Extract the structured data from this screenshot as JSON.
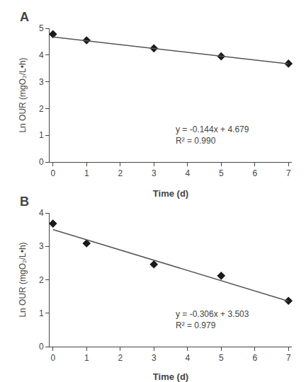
{
  "chart_data": [
    {
      "type": "scatter",
      "title": "A",
      "x_label": "Time (d)",
      "y_label": "Ln OUR (mgO₂/L•h)",
      "series": [
        {
          "type": "scatter",
          "marker": "diamond",
          "color": "#1a1a1a",
          "x": [
            0,
            1,
            3,
            5,
            7
          ],
          "values": [
            4.78,
            4.55,
            4.25,
            3.95,
            3.68
          ]
        },
        {
          "type": "line",
          "line_style": "solid",
          "color": "#555555",
          "x": [
            0,
            7
          ],
          "values": [
            4.679,
            3.671
          ]
        }
      ],
      "annotations": [
        {
          "text": "y = -0.144x + 4.679\nR² = 0.990",
          "x": 3.6,
          "y": 0.55
        }
      ],
      "xlim": [
        -0.1,
        7.1
      ],
      "xticks": [
        0,
        1,
        2,
        3,
        4,
        5,
        6,
        7
      ],
      "ylim": [
        0,
        5
      ],
      "yticks": [
        0,
        1,
        2,
        3,
        4,
        5
      ],
      "grid": false
    },
    {
      "type": "scatter",
      "title": "B",
      "x_label": "Time (d)",
      "y_label": "Ln OUR (mgO₂/L•h)",
      "series": [
        {
          "type": "scatter",
          "marker": "diamond",
          "color": "#1a1a1a",
          "x": [
            0,
            1,
            3,
            5,
            7
          ],
          "values": [
            3.68,
            3.09,
            2.46,
            2.12,
            1.37
          ]
        },
        {
          "type": "line",
          "line_style": "solid",
          "color": "#555555",
          "x": [
            0,
            7
          ],
          "values": [
            3.503,
            1.361
          ]
        }
      ],
      "annotations": [
        {
          "text": "y = -0.306x + 3.503\nR² = 0.979",
          "x": 3.6,
          "y": 0.45
        }
      ],
      "xlim": [
        -0.1,
        7.1
      ],
      "xticks": [
        0,
        1,
        2,
        3,
        4,
        5,
        6,
        7
      ],
      "ylim": [
        0,
        4
      ],
      "yticks": [
        0,
        1,
        2,
        3,
        4
      ],
      "grid": false
    }
  ]
}
